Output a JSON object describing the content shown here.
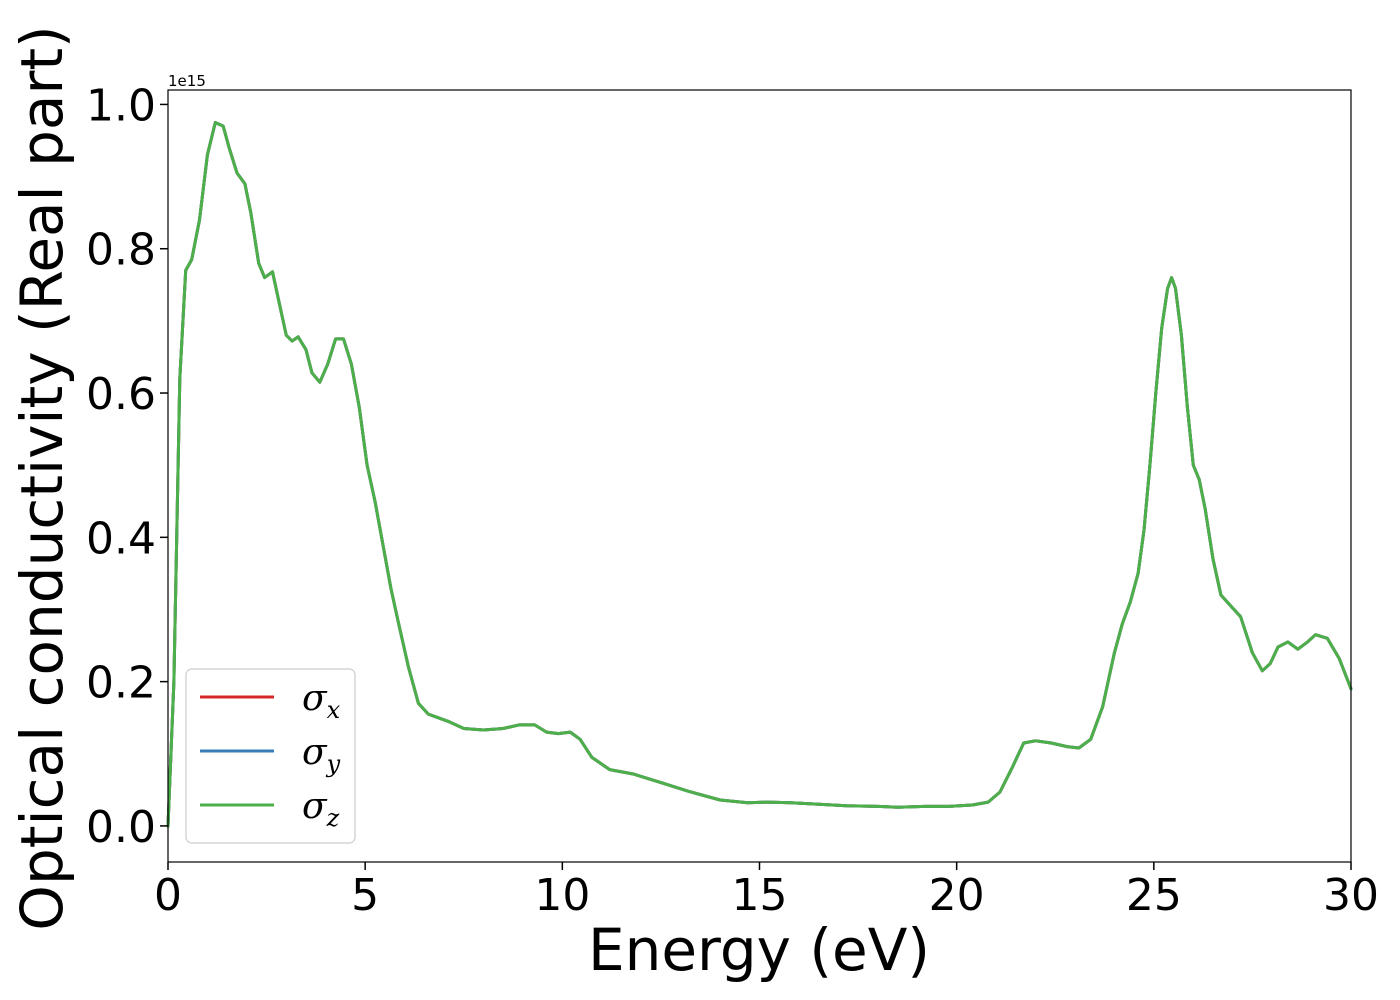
{
  "chart_data": {
    "type": "line",
    "title": "",
    "xlabel": "Energy (eV)",
    "ylabel": "Optical conductivity (Real part)",
    "y_offset_text": "1e15",
    "xlim": [
      0,
      30
    ],
    "ylim": [
      -0.05,
      1.02
    ],
    "xticks": [
      0,
      5,
      10,
      15,
      20,
      25,
      30
    ],
    "xtick_labels": [
      "0",
      "5",
      "10",
      "15",
      "20",
      "25",
      "30"
    ],
    "yticks": [
      0.0,
      0.2,
      0.4,
      0.6,
      0.8,
      1.0
    ],
    "ytick_labels": [
      "0.0",
      "0.2",
      "0.4",
      "0.6",
      "0.8",
      "1.0"
    ],
    "grid": false,
    "legend_position": "lower-left",
    "x": [
      0,
      0.15,
      0.3,
      0.45,
      0.6,
      0.8,
      1.0,
      1.2,
      1.4,
      1.55,
      1.75,
      1.95,
      2.1,
      2.3,
      2.45,
      2.65,
      2.8,
      3.0,
      3.15,
      3.3,
      3.5,
      3.65,
      3.85,
      4.05,
      4.25,
      4.45,
      4.65,
      4.85,
      5.05,
      5.25,
      5.45,
      5.65,
      5.85,
      6.1,
      6.35,
      6.6,
      6.85,
      7.1,
      7.5,
      8.0,
      8.5,
      8.9,
      9.3,
      9.6,
      9.9,
      10.2,
      10.45,
      10.75,
      11.2,
      11.8,
      12.5,
      13.2,
      14.0,
      14.7,
      15.2,
      15.8,
      16.5,
      17.2,
      18.0,
      18.5,
      19.2,
      19.8,
      20.4,
      20.8,
      21.1,
      21.4,
      21.7,
      22.0,
      22.4,
      22.8,
      23.1,
      23.4,
      23.7,
      24.0,
      24.2,
      24.4,
      24.6,
      24.75,
      24.9,
      25.05,
      25.2,
      25.35,
      25.45,
      25.55,
      25.7,
      25.85,
      26.0,
      26.15,
      26.3,
      26.5,
      26.7,
      26.95,
      27.2,
      27.5,
      27.75,
      27.95,
      28.15,
      28.4,
      28.65,
      28.9,
      29.1,
      29.4,
      29.7,
      30.0
    ],
    "series": [
      {
        "name": "σx",
        "color": "#d62728",
        "values": [
          0.0,
          0.2,
          0.62,
          0.77,
          0.785,
          0.84,
          0.93,
          0.975,
          0.97,
          0.94,
          0.905,
          0.89,
          0.85,
          0.78,
          0.76,
          0.768,
          0.73,
          0.68,
          0.672,
          0.678,
          0.66,
          0.628,
          0.615,
          0.64,
          0.675,
          0.675,
          0.64,
          0.58,
          0.5,
          0.45,
          0.39,
          0.33,
          0.28,
          0.22,
          0.17,
          0.155,
          0.15,
          0.145,
          0.135,
          0.133,
          0.135,
          0.14,
          0.14,
          0.13,
          0.128,
          0.13,
          0.12,
          0.095,
          0.078,
          0.072,
          0.06,
          0.048,
          0.036,
          0.032,
          0.033,
          0.032,
          0.03,
          0.028,
          0.027,
          0.026,
          0.027,
          0.027,
          0.029,
          0.033,
          0.047,
          0.08,
          0.115,
          0.118,
          0.115,
          0.11,
          0.108,
          0.12,
          0.165,
          0.24,
          0.28,
          0.31,
          0.35,
          0.41,
          0.5,
          0.6,
          0.69,
          0.745,
          0.76,
          0.745,
          0.68,
          0.58,
          0.5,
          0.48,
          0.44,
          0.37,
          0.32,
          0.305,
          0.29,
          0.24,
          0.215,
          0.225,
          0.248,
          0.255,
          0.245,
          0.255,
          0.265,
          0.26,
          0.232,
          0.19
        ]
      },
      {
        "name": "σy",
        "color": "#377eb8",
        "values": [
          0.0,
          0.2,
          0.62,
          0.77,
          0.785,
          0.84,
          0.93,
          0.975,
          0.97,
          0.94,
          0.905,
          0.89,
          0.85,
          0.78,
          0.76,
          0.768,
          0.73,
          0.68,
          0.672,
          0.678,
          0.66,
          0.628,
          0.615,
          0.64,
          0.675,
          0.675,
          0.64,
          0.58,
          0.5,
          0.45,
          0.39,
          0.33,
          0.28,
          0.22,
          0.17,
          0.155,
          0.15,
          0.145,
          0.135,
          0.133,
          0.135,
          0.14,
          0.14,
          0.13,
          0.128,
          0.13,
          0.12,
          0.095,
          0.078,
          0.072,
          0.06,
          0.048,
          0.036,
          0.032,
          0.033,
          0.032,
          0.03,
          0.028,
          0.027,
          0.026,
          0.027,
          0.027,
          0.029,
          0.033,
          0.047,
          0.08,
          0.115,
          0.118,
          0.115,
          0.11,
          0.108,
          0.12,
          0.165,
          0.24,
          0.28,
          0.31,
          0.35,
          0.41,
          0.5,
          0.6,
          0.69,
          0.745,
          0.76,
          0.745,
          0.68,
          0.58,
          0.5,
          0.48,
          0.44,
          0.37,
          0.32,
          0.305,
          0.29,
          0.24,
          0.215,
          0.225,
          0.248,
          0.255,
          0.245,
          0.255,
          0.265,
          0.26,
          0.232,
          0.19
        ]
      },
      {
        "name": "σz",
        "color": "#4daf4a",
        "values": [
          0.0,
          0.2,
          0.62,
          0.77,
          0.785,
          0.84,
          0.93,
          0.975,
          0.97,
          0.94,
          0.905,
          0.89,
          0.85,
          0.78,
          0.76,
          0.768,
          0.73,
          0.68,
          0.672,
          0.678,
          0.66,
          0.628,
          0.615,
          0.64,
          0.675,
          0.675,
          0.64,
          0.58,
          0.5,
          0.45,
          0.39,
          0.33,
          0.28,
          0.22,
          0.17,
          0.155,
          0.15,
          0.145,
          0.135,
          0.133,
          0.135,
          0.14,
          0.14,
          0.13,
          0.128,
          0.13,
          0.12,
          0.095,
          0.078,
          0.072,
          0.06,
          0.048,
          0.036,
          0.032,
          0.033,
          0.032,
          0.03,
          0.028,
          0.027,
          0.026,
          0.027,
          0.027,
          0.029,
          0.033,
          0.047,
          0.08,
          0.115,
          0.118,
          0.115,
          0.11,
          0.108,
          0.12,
          0.165,
          0.24,
          0.28,
          0.31,
          0.35,
          0.41,
          0.5,
          0.6,
          0.69,
          0.745,
          0.76,
          0.745,
          0.68,
          0.58,
          0.5,
          0.48,
          0.44,
          0.37,
          0.32,
          0.305,
          0.29,
          0.24,
          0.215,
          0.225,
          0.248,
          0.255,
          0.245,
          0.255,
          0.265,
          0.26,
          0.232,
          0.19
        ]
      }
    ],
    "legend": [
      {
        "symbol": "σ",
        "sub": "x"
      },
      {
        "symbol": "σ",
        "sub": "y"
      },
      {
        "symbol": "σ",
        "sub": "z"
      }
    ]
  }
}
